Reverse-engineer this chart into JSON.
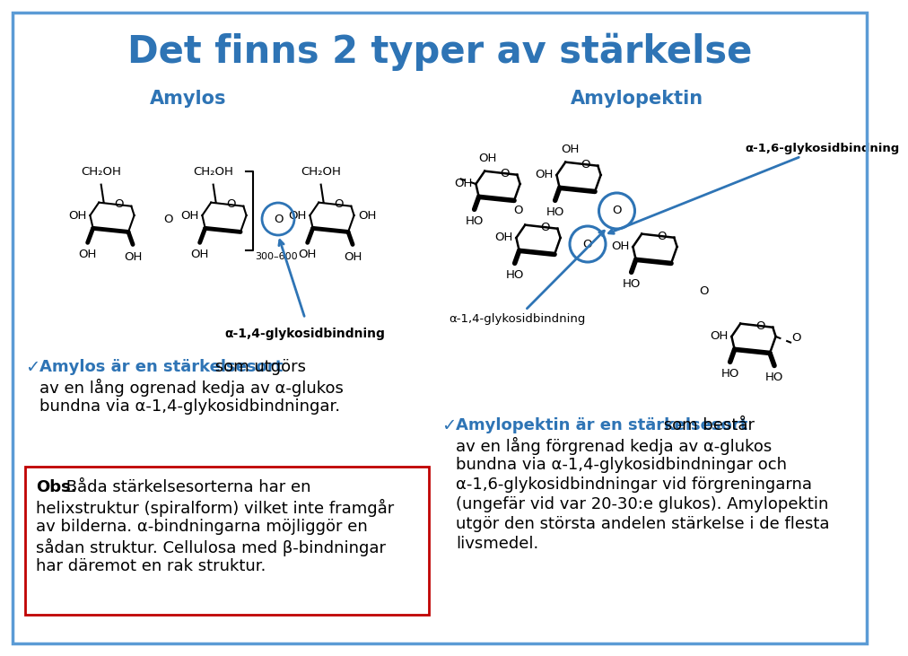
{
  "bg": "#ffffff",
  "border_color": "#5b9bd5",
  "title": "Det finns 2 typer av stärkelse",
  "title_color": "#2e74b5",
  "title_fontsize": 30,
  "amylos_label": "Amylos",
  "amylopektin_label": "Amylopektin",
  "label_color": "#2e74b5",
  "label_fontsize": 15,
  "alpha_14_label": "α-1,4-glykosidbindning",
  "alpha_16_label": "α-1,6-glykosidbindning",
  "arrow_color": "#2e74b5",
  "circle_color": "#2e74b5",
  "bullet_color": "#2e74b5",
  "check": "✓",
  "amylos_bold": "Amylos är en stärkelsesort",
  "amylos_line1_rest": " som utgörs",
  "amylos_line2": "av en lång ogrenad kedja av α-glukos",
  "amylos_line3": "bundna via α-1,4-glykosidbindningar.",
  "ampektin_bold": "Amylopektin är en stärkelsesort",
  "ampektin_line1_rest": " som består",
  "ampektin_line2": "av en lång förgrenad kedja av α-glukos",
  "ampektin_line3": "bundna via α-1,4-glykosidbindningar och",
  "ampektin_line4": "α-1,6-glykosidbindningar vid förgreningarna",
  "ampektin_line5": "(ungefär vid var 20-30:e glukos). Amylopektin",
  "ampektin_line6": "utgör den största andelen stärkelse i de flesta",
  "ampektin_line7": "livsmedel.",
  "obs_border": "#c00000",
  "obs_bold": "Obs.",
  "obs_line1_rest": " Båda stärkelsesorterna har en",
  "obs_line2": "helixstruktur (spiralform) vilket inte framgår",
  "obs_line3": "av bilderna. α-bindningarna möjliggör en",
  "obs_line4": "sådan struktur. Cellulosa med β-bindningar",
  "obs_line5": "har däremot en rak struktur.",
  "text_color": "#000000",
  "body_fs": 13
}
